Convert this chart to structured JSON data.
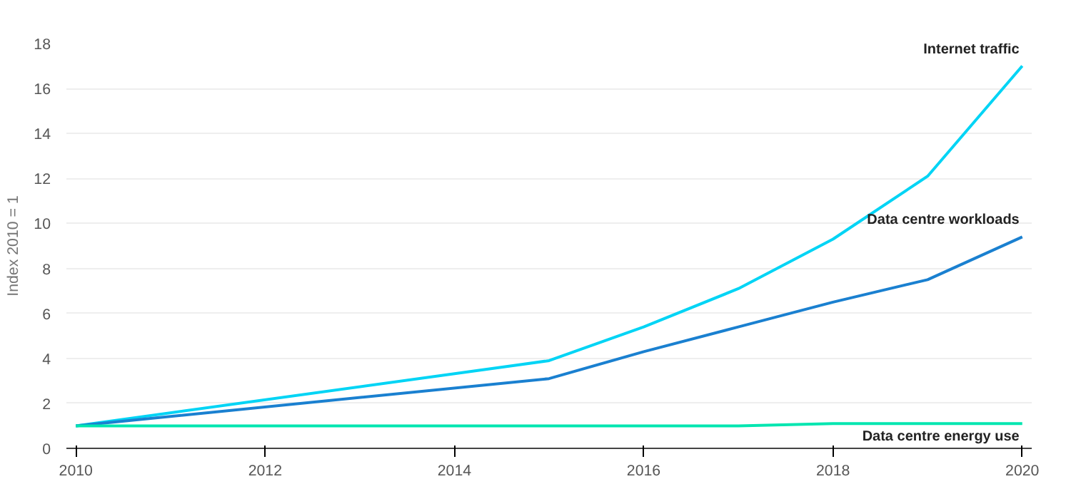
{
  "chart_data": {
    "type": "line",
    "ylabel": "Index 2010 = 1",
    "x": [
      2010,
      2015,
      2016,
      2017,
      2018,
      2019,
      2020
    ],
    "series": [
      {
        "name": "Internet traffic",
        "color": "#00d4f5",
        "values": [
          1,
          3.9,
          5.4,
          7.1,
          9.3,
          12.1,
          17
        ]
      },
      {
        "name": "Data centre workloads",
        "color": "#1a80d0",
        "values": [
          1,
          3.1,
          4.3,
          5.4,
          6.5,
          7.5,
          9.4
        ]
      },
      {
        "name": "Data centre energy use",
        "color": "#00e6b0",
        "values": [
          1,
          1,
          1,
          1,
          1.1,
          1.1,
          1.1
        ]
      }
    ],
    "xlim": [
      2009.9,
      2020.1
    ],
    "xticks": [
      2010,
      2012,
      2014,
      2016,
      2018,
      2020
    ],
    "ylim": [
      0,
      18
    ],
    "yticks": [
      0,
      2,
      4,
      6,
      8,
      10,
      12,
      14,
      16,
      18
    ],
    "grid": "y",
    "legend": false
  }
}
